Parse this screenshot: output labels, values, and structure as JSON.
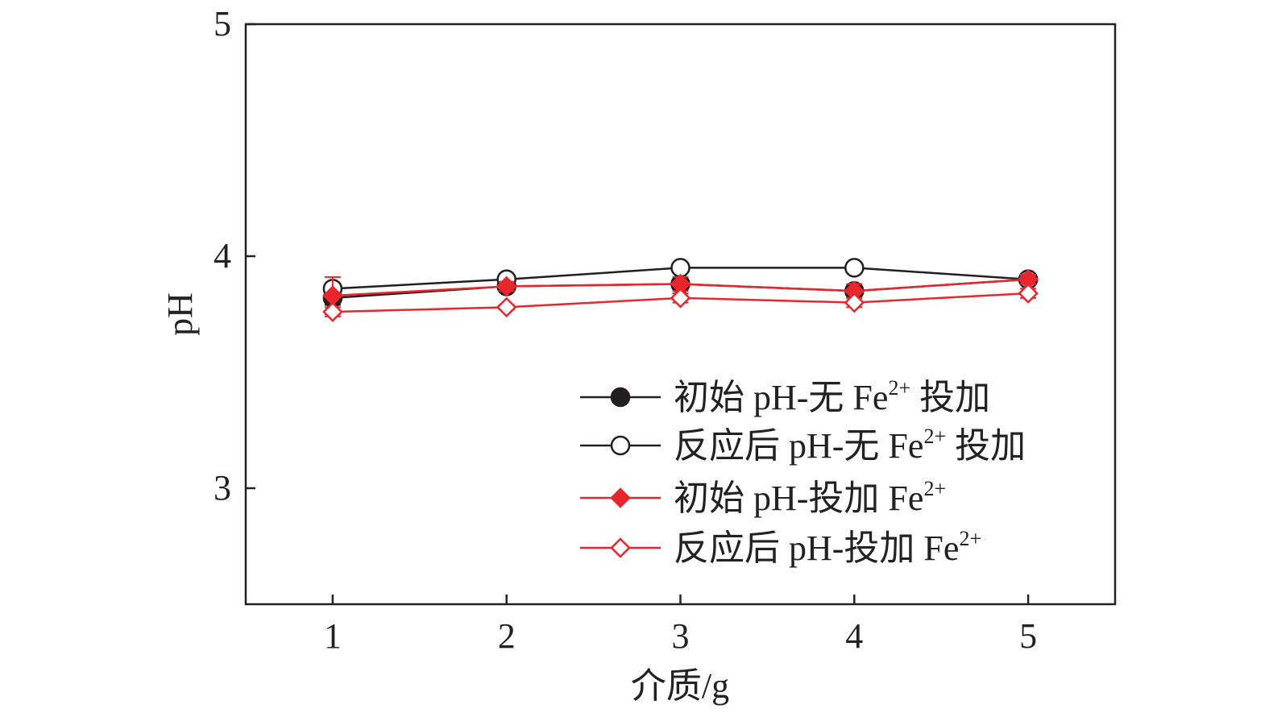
{
  "chart_data": {
    "type": "line",
    "xlabel": "介质/g",
    "ylabel": "pH",
    "x": [
      1,
      2,
      3,
      4,
      5
    ],
    "xlim": [
      0.5,
      5.5
    ],
    "ylim": [
      2.5,
      5
    ],
    "yticks": [
      3,
      4,
      5
    ],
    "xticks": [
      1,
      2,
      3,
      4,
      5
    ],
    "grid": false,
    "legend_position": "bottom-right",
    "series": [
      {
        "name_main": "初始 pH-无 Fe",
        "name_sup": "2+",
        "name_tail": " 投加",
        "color": "#231f20",
        "marker": "filled-circle",
        "values": [
          3.82,
          3.87,
          3.88,
          3.85,
          3.9
        ],
        "errors": [
          0.03,
          0.02,
          0.02,
          0.02,
          0.02
        ]
      },
      {
        "name_main": "反应后 pH-无 Fe",
        "name_sup": "2+",
        "name_tail": " 投加",
        "color": "#231f20",
        "marker": "open-circle",
        "values": [
          3.86,
          3.9,
          3.95,
          3.95,
          3.9
        ],
        "errors": [
          0.02,
          0.02,
          0.02,
          0.02,
          0.02
        ]
      },
      {
        "name_main": "初始 pH-投加 Fe",
        "name_sup": "2+",
        "name_tail": "",
        "color": "#e8262d",
        "marker": "filled-diamond",
        "values": [
          3.83,
          3.87,
          3.88,
          3.85,
          3.9
        ],
        "errors": [
          0.08,
          0.02,
          0.03,
          0.03,
          0.02
        ]
      },
      {
        "name_main": "反应后 pH-投加 Fe",
        "name_sup": "2+",
        "name_tail": "",
        "color": "#e8262d",
        "marker": "open-diamond",
        "values": [
          3.76,
          3.78,
          3.82,
          3.8,
          3.84
        ],
        "errors": [
          0.02,
          0.01,
          0.02,
          0.02,
          0.02
        ]
      }
    ]
  }
}
